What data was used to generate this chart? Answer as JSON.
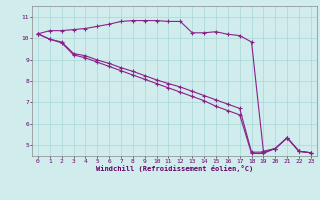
{
  "xlabel": "Windchill (Refroidissement éolien,°C)",
  "background_color": "#d0ecec",
  "grid_color": "#a8d8d8",
  "line_color": "#882288",
  "xlim": [
    -0.5,
    23.5
  ],
  "ylim": [
    4.5,
    11.5
  ],
  "yticks": [
    5,
    6,
    7,
    8,
    9,
    10,
    11
  ],
  "xticks": [
    0,
    1,
    2,
    3,
    4,
    5,
    6,
    7,
    8,
    9,
    10,
    11,
    12,
    13,
    14,
    15,
    16,
    17,
    18,
    19,
    20,
    21,
    22,
    23
  ],
  "line1_x": [
    0,
    1,
    2,
    3,
    4,
    5,
    6,
    7,
    8,
    9,
    10,
    11,
    12,
    13,
    14,
    15,
    16,
    17,
    18,
    19,
    20,
    21,
    22,
    23
  ],
  "line1_y": [
    10.2,
    10.35,
    10.35,
    10.4,
    10.45,
    10.55,
    10.65,
    10.78,
    10.82,
    10.82,
    10.82,
    10.78,
    10.78,
    10.25,
    10.25,
    10.3,
    10.18,
    10.12,
    9.82,
    4.72,
    4.85,
    5.35,
    4.72,
    4.65
  ],
  "line2_x": [
    0,
    1,
    2,
    3,
    4,
    5,
    6,
    7,
    8,
    9,
    10,
    11,
    12,
    13,
    14,
    15,
    16,
    17,
    18,
    19,
    20,
    21,
    22,
    23
  ],
  "line2_y": [
    10.2,
    9.95,
    9.82,
    9.28,
    9.18,
    8.98,
    8.82,
    8.62,
    8.45,
    8.25,
    8.05,
    7.88,
    7.72,
    7.52,
    7.32,
    7.12,
    6.92,
    6.72,
    4.68,
    4.68,
    4.85,
    5.35,
    4.72,
    4.65
  ],
  "line3_x": [
    0,
    1,
    2,
    3,
    4,
    5,
    6,
    7,
    8,
    9,
    10,
    11,
    12,
    13,
    14,
    15,
    16,
    17,
    18,
    19,
    20,
    21,
    22,
    23
  ],
  "line3_y": [
    10.2,
    9.95,
    9.78,
    9.22,
    9.08,
    8.88,
    8.68,
    8.48,
    8.28,
    8.08,
    7.88,
    7.68,
    7.48,
    7.28,
    7.08,
    6.82,
    6.62,
    6.42,
    4.62,
    4.62,
    4.85,
    5.35,
    4.72,
    4.65
  ]
}
